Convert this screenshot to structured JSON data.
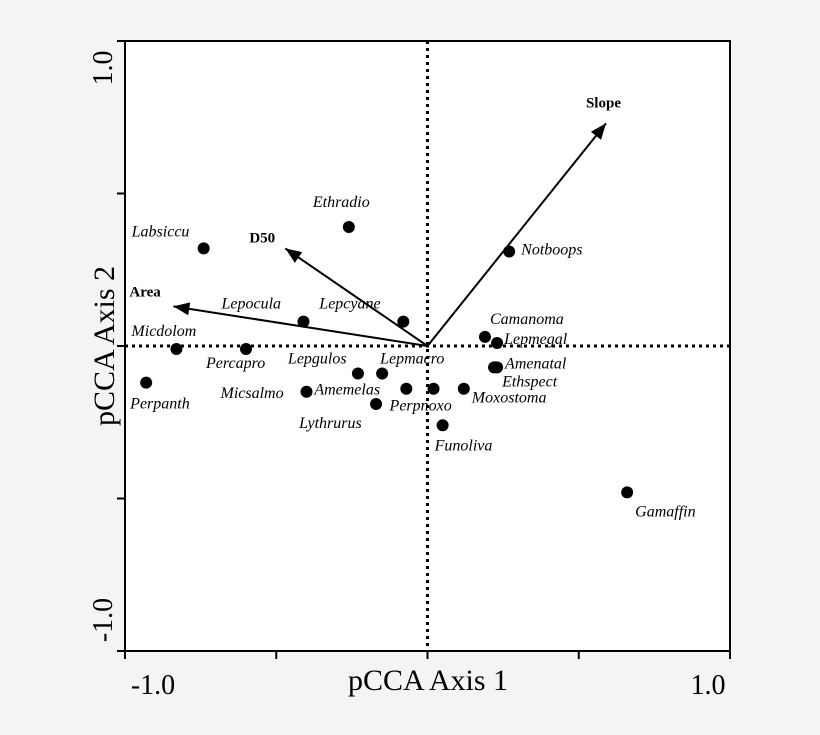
{
  "chart_data": {
    "type": "scatter",
    "title": "",
    "xlabel": "pCCA Axis 1",
    "ylabel": "pCCA Axis 2",
    "xlim": [
      -1.0,
      1.0
    ],
    "ylim": [
      -1.0,
      1.0
    ],
    "x_tick_labels": [
      "-1.0",
      "1.0"
    ],
    "y_tick_labels": [
      "1.0",
      "-1.0"
    ],
    "grid": false,
    "reference_lines": "dotted lines at x=0 and y=0",
    "species": [
      {
        "name": "Ethradio",
        "x": -0.26,
        "y": 0.39
      },
      {
        "name": "Labsiccu",
        "x": -0.74,
        "y": 0.32
      },
      {
        "name": "Notboops",
        "x": 0.27,
        "y": 0.31
      },
      {
        "name": "Lepocula",
        "x": -0.41,
        "y": 0.08
      },
      {
        "name": "Lepcyane",
        "x": -0.08,
        "y": 0.08
      },
      {
        "name": "Camanoma",
        "x": 0.19,
        "y": 0.03
      },
      {
        "name": "Lepmegal",
        "x": 0.23,
        "y": 0.01
      },
      {
        "name": "Micdolom",
        "x": -0.83,
        "y": -0.01
      },
      {
        "name": "Percapro",
        "x": -0.6,
        "y": -0.01
      },
      {
        "name": "Amenatal",
        "x": 0.22,
        "y": -0.07
      },
      {
        "name": "Ethspect",
        "x": 0.23,
        "y": -0.07
      },
      {
        "name": "Lepgulos",
        "x": -0.23,
        "y": -0.09
      },
      {
        "name": "Lepmacro",
        "x": -0.15,
        "y": -0.09
      },
      {
        "name": "Perpanth",
        "x": -0.93,
        "y": -0.12
      },
      {
        "name": "Micsalmo",
        "x": -0.4,
        "y": -0.15
      },
      {
        "name": "Amemelas",
        "x": -0.07,
        "y": -0.14
      },
      {
        "name": "Perpnoxo",
        "x": 0.02,
        "y": -0.14
      },
      {
        "name": "Moxostoma",
        "x": 0.12,
        "y": -0.14
      },
      {
        "name": "Lythrurus",
        "x": -0.17,
        "y": -0.19
      },
      {
        "name": "Funoliva",
        "x": 0.05,
        "y": -0.26
      },
      {
        "name": "Gamaffin",
        "x": 0.66,
        "y": -0.48
      }
    ],
    "vectors": [
      {
        "name": "Slope",
        "x": 0.59,
        "y": 0.73
      },
      {
        "name": "D50",
        "x": -0.47,
        "y": 0.32
      },
      {
        "name": "Area",
        "x": -0.84,
        "y": 0.13
      }
    ]
  }
}
